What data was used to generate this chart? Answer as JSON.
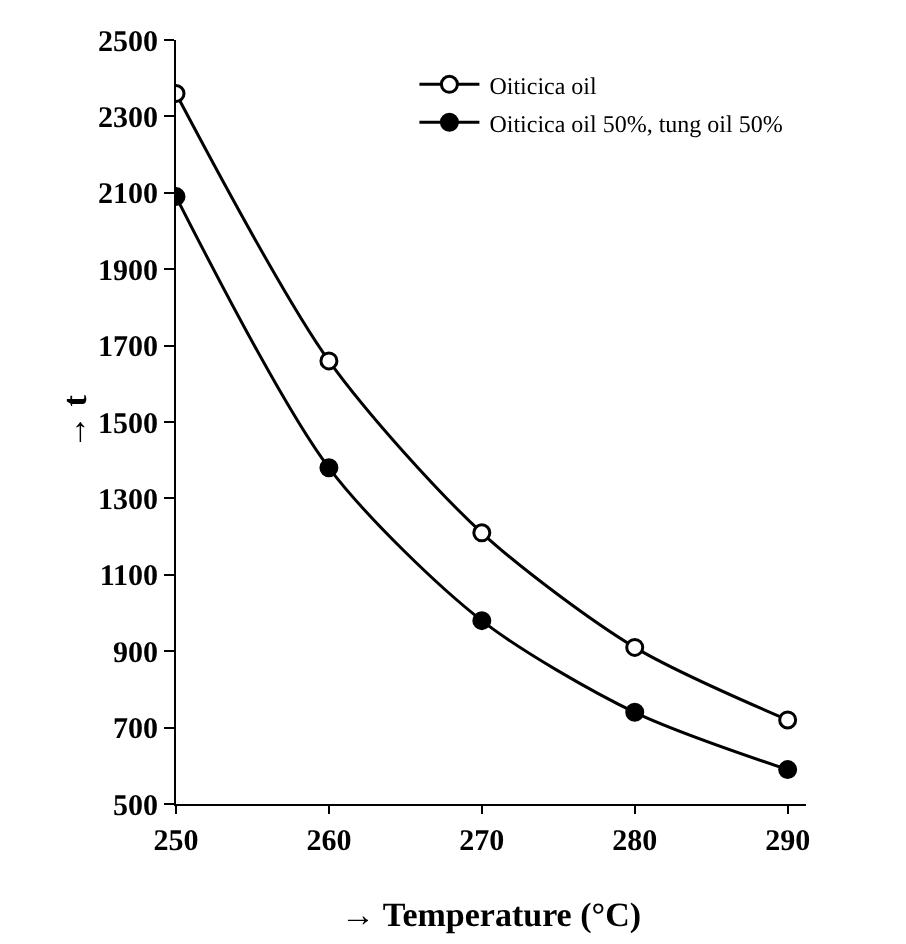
{
  "chart_data": {
    "type": "line",
    "xlabel": "→ Temperature (°C)",
    "ylabel": "→ t",
    "x": [
      250,
      260,
      270,
      280,
      290
    ],
    "series": [
      {
        "name": "Oiticica oil",
        "color": "#000000",
        "values": [
          2360,
          1660,
          1210,
          910,
          720
        ]
      },
      {
        "name": "Oiticica oil 50%, tung oil 50%",
        "color": "#000000",
        "values": [
          2090,
          1380,
          980,
          740,
          590
        ]
      }
    ],
    "xlim": [
      250,
      291.2
    ],
    "xticks": [
      250,
      260,
      270,
      280,
      290
    ],
    "ylim": [
      500,
      2500
    ],
    "yticks": [
      500,
      700,
      900,
      1100,
      1300,
      1500,
      1700,
      1900,
      2100,
      2300,
      2500
    ],
    "grid": false,
    "legend": "top right",
    "marker": "circle",
    "line_style": "solid"
  }
}
